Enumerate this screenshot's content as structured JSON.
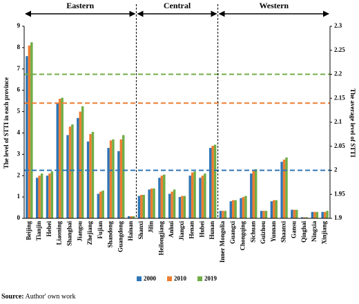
{
  "chart_data": {
    "type": "bar",
    "groups": [
      {
        "label": "Eastern",
        "categories": [
          "Beijing",
          "Tianjin",
          "Hebei",
          "Liaoning",
          "Shanghai",
          "Jiangsu",
          "Zhejiang",
          "Fujian",
          "Shandong",
          "Guangdong",
          "Hainan"
        ]
      },
      {
        "label": "Central",
        "categories": [
          "Shanxi",
          "Jilin",
          "Heilongjiang",
          "Anhui",
          "Jiangxi",
          "Henan",
          "Hubei",
          "Hunan"
        ]
      },
      {
        "label": "Western",
        "categories": [
          "Inner Mongolia",
          "Guangxi",
          "Chongqing",
          "Sichuan",
          "Guizhou",
          "Yunnan",
          "Shaanxi",
          "Gansu",
          "Qinghai",
          "Ningxia",
          "Xinjiang"
        ]
      }
    ],
    "series": [
      {
        "name": "2000",
        "color": "#2e75b6",
        "average": 2.0,
        "values": [
          7.6,
          1.9,
          2.0,
          5.4,
          3.9,
          4.7,
          3.6,
          1.15,
          3.3,
          3.15,
          0.1,
          1.05,
          1.35,
          1.9,
          1.15,
          1.0,
          2.0,
          1.9,
          3.3,
          0.35,
          0.8,
          0.95,
          2.1,
          0.35,
          0.8,
          2.65,
          0.4,
          0.05,
          0.3,
          0.3
        ]
      },
      {
        "name": "2010",
        "color": "#ed7d31",
        "average": 2.14,
        "values": [
          8.1,
          2.0,
          2.1,
          5.6,
          4.3,
          5.0,
          3.95,
          1.25,
          3.65,
          3.7,
          0.1,
          1.1,
          1.4,
          2.0,
          1.25,
          1.05,
          2.15,
          2.0,
          3.4,
          0.35,
          0.85,
          1.0,
          2.25,
          0.35,
          0.85,
          2.75,
          0.4,
          0.05,
          0.3,
          0.3
        ]
      },
      {
        "name": "2019",
        "color": "#70ad47",
        "average": 2.2,
        "values": [
          8.25,
          2.1,
          2.2,
          5.65,
          4.4,
          5.25,
          4.05,
          1.3,
          3.7,
          3.9,
          0.1,
          1.1,
          1.4,
          2.05,
          1.35,
          1.05,
          2.2,
          2.1,
          3.45,
          0.35,
          0.85,
          1.05,
          2.3,
          0.35,
          0.85,
          2.85,
          0.4,
          0.05,
          0.3,
          0.35
        ]
      }
    ],
    "ylabel": "The level of STTI in each province",
    "y2label": "The average level of STTI",
    "ylim": [
      0,
      9
    ],
    "yticks": [
      0,
      1,
      2,
      3,
      4,
      5,
      6,
      7,
      8,
      9
    ],
    "y2lim": [
      1.9,
      2.3
    ],
    "y2ticks": [
      1.9,
      1.95,
      2,
      2.05,
      2.1,
      2.15,
      2.2,
      2.25,
      2.3
    ],
    "source_label": "Source:",
    "source": "Author' own work"
  }
}
